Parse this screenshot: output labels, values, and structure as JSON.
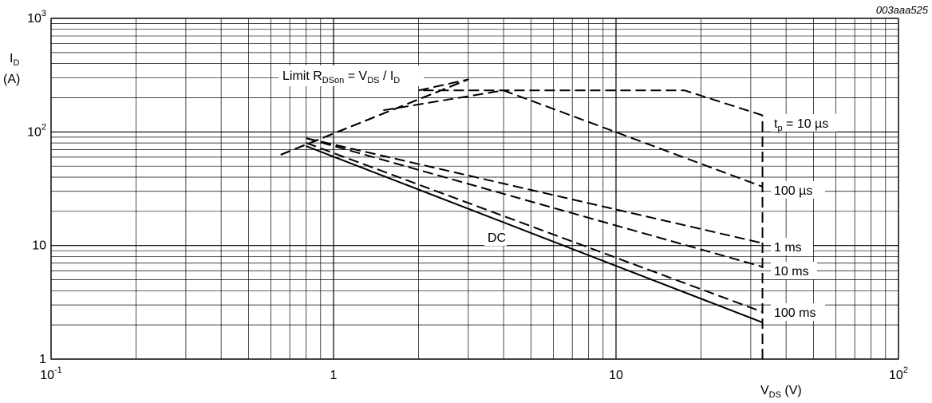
{
  "figure_id": "003aaa525",
  "chart_data": {
    "type": "line",
    "xscale": "log",
    "yscale": "log",
    "xlim": [
      0.1,
      100
    ],
    "ylim": [
      1,
      1000
    ],
    "grid": true,
    "x_ticks": [
      {
        "base": "10",
        "exp": "-1"
      },
      {
        "base": "1",
        "exp": ""
      },
      {
        "base": "10",
        "exp": ""
      },
      {
        "base": "10",
        "exp": "2"
      }
    ],
    "y_ticks": [
      {
        "base": "1",
        "exp": ""
      },
      {
        "base": "10",
        "exp": ""
      },
      {
        "base": "10",
        "exp": "2"
      },
      {
        "base": "10",
        "exp": "3"
      }
    ],
    "xlabel": {
      "main": "V",
      "sub": "DS",
      "unit": " (V)"
    },
    "ylabel": {
      "main": "I",
      "sub": "D",
      "unit": "(A)"
    },
    "limit_label": {
      "prefix": "Limit R",
      "sub1": "DSon",
      "mid": " = V",
      "sub2": "DS",
      "slash": " / I",
      "sub3": "D"
    },
    "limit_line": {
      "style": "dashed",
      "x": [
        0.65,
        3.0
      ],
      "y": [
        63,
        290
      ]
    },
    "series": [
      {
        "label": "t",
        "label_sub": "p",
        "label_rest": " = 10 µs",
        "style": "dashed",
        "x": [
          0.65,
          3.0,
          3.0,
          2.0,
          4.0,
          17.5,
          33.0,
          33.0
        ],
        "y": [
          63,
          290,
          290,
          232,
          232,
          232,
          140,
          140
        ]
      },
      {
        "label": "100 µs",
        "style": "dashed",
        "x": [
          1.5,
          4.0,
          33.0
        ],
        "y": [
          155,
          232,
          33
        ]
      },
      {
        "label": "1 ms",
        "style": "dashed",
        "x": [
          0.8,
          33.0
        ],
        "y": [
          88,
          10.5
        ]
      },
      {
        "label": "10 ms",
        "style": "dashed",
        "x": [
          0.8,
          33.0
        ],
        "y": [
          88,
          6.5
        ]
      },
      {
        "label": "100 ms",
        "style": "dashed",
        "x": [
          0.8,
          33.0
        ],
        "y": [
          80,
          2.6
        ]
      },
      {
        "label": "DC",
        "style": "solid",
        "x": [
          0.8,
          33.0
        ],
        "y": [
          75,
          2.1
        ]
      }
    ],
    "vertical_limit": {
      "x": 33.0,
      "y": [
        1,
        140
      ],
      "style": "dashed"
    }
  }
}
